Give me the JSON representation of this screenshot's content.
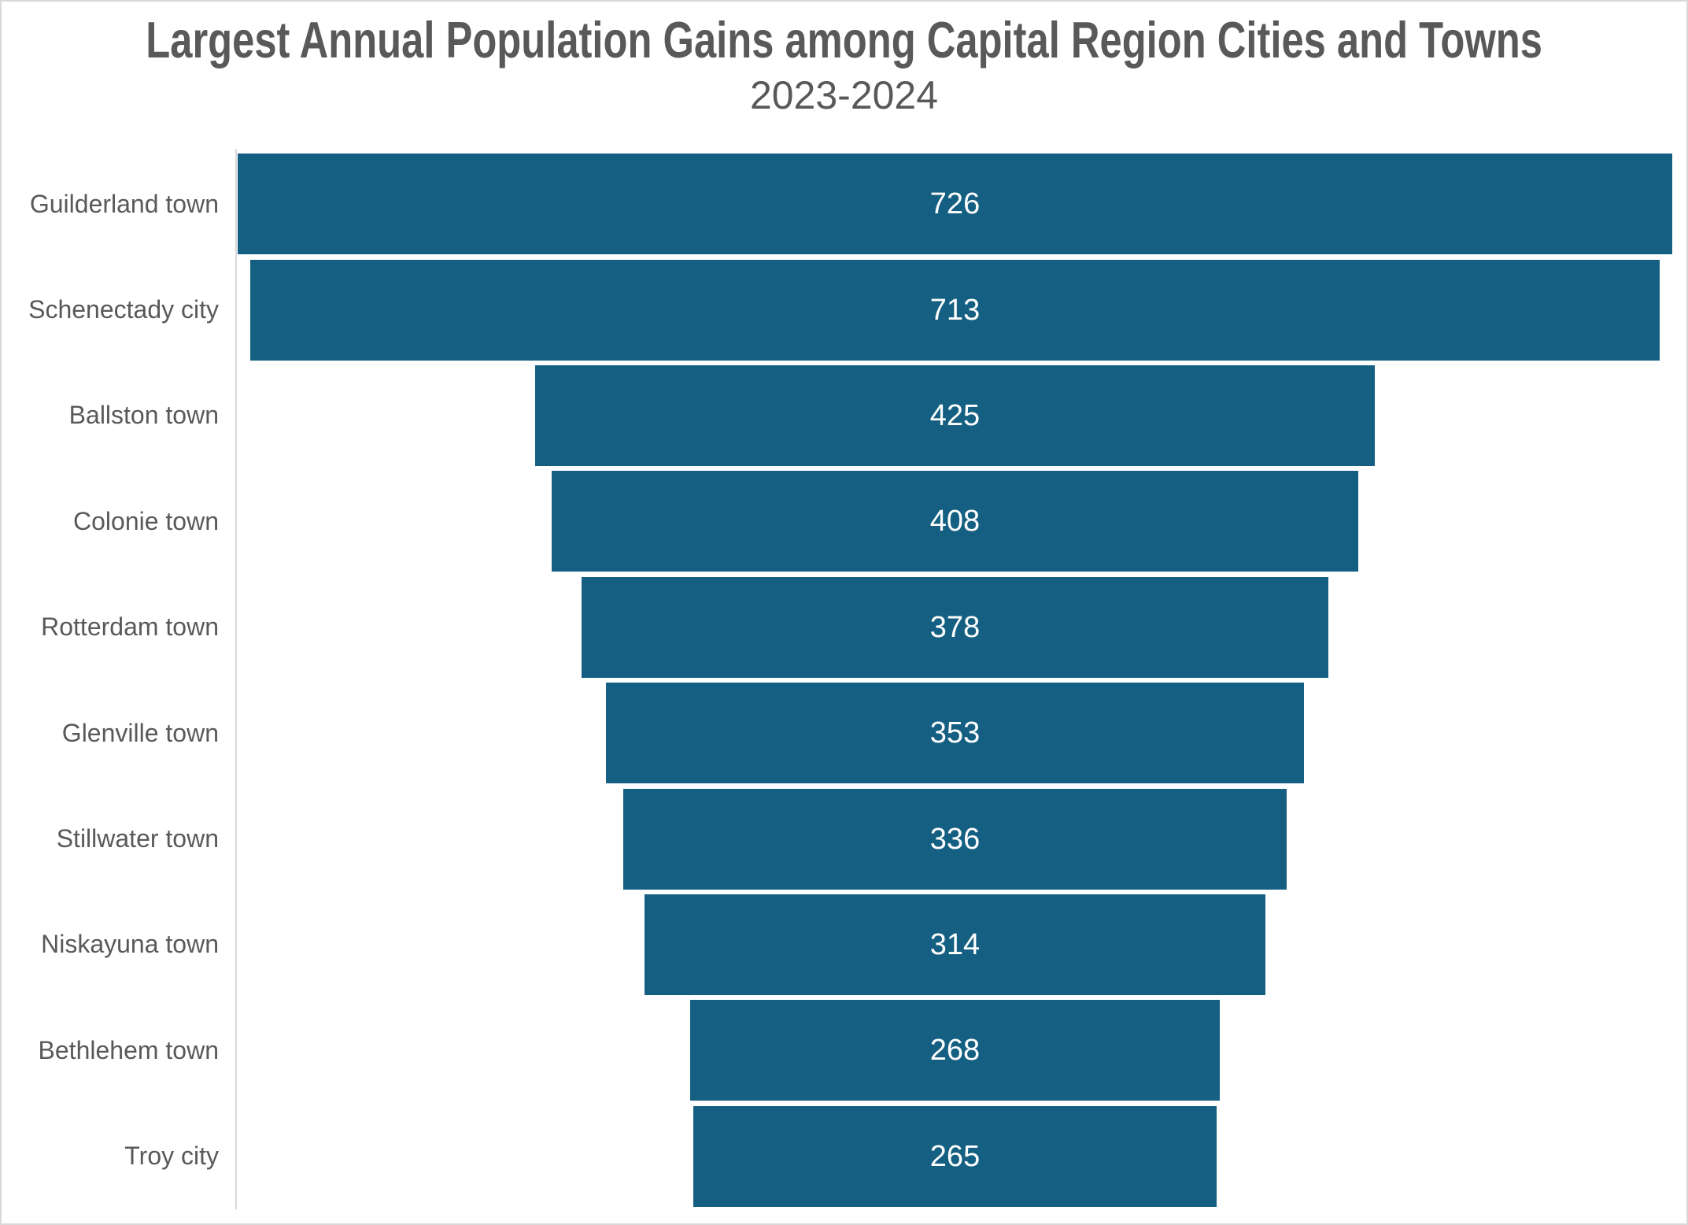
{
  "chart_data": {
    "type": "funnel",
    "orientation": "horizontal-centered",
    "title": "Largest Annual Population Gains among Capital Region Cities and Towns",
    "subtitle": "2023-2024",
    "categories": [
      "Guilderland town",
      "Schenectady city",
      "Ballston town",
      "Colonie town",
      "Rotterdam town",
      "Glenville town",
      "Stillwater town",
      "Niskayuna town",
      "Bethlehem town",
      "Troy city"
    ],
    "values": [
      726,
      713,
      425,
      408,
      378,
      353,
      336,
      314,
      268,
      265
    ],
    "value_label_position": "center-inside",
    "xlim": [
      0,
      726
    ],
    "grid": false,
    "legend": false,
    "colors": {
      "bar": "#156082",
      "title": "#595959",
      "subtitle": "#595959",
      "category_label": "#595959",
      "value_label": "#FFFFFF",
      "axis_line": "#D9D9D9",
      "chart_border": "#D9D9D9",
      "background": "#FFFFFF"
    }
  }
}
